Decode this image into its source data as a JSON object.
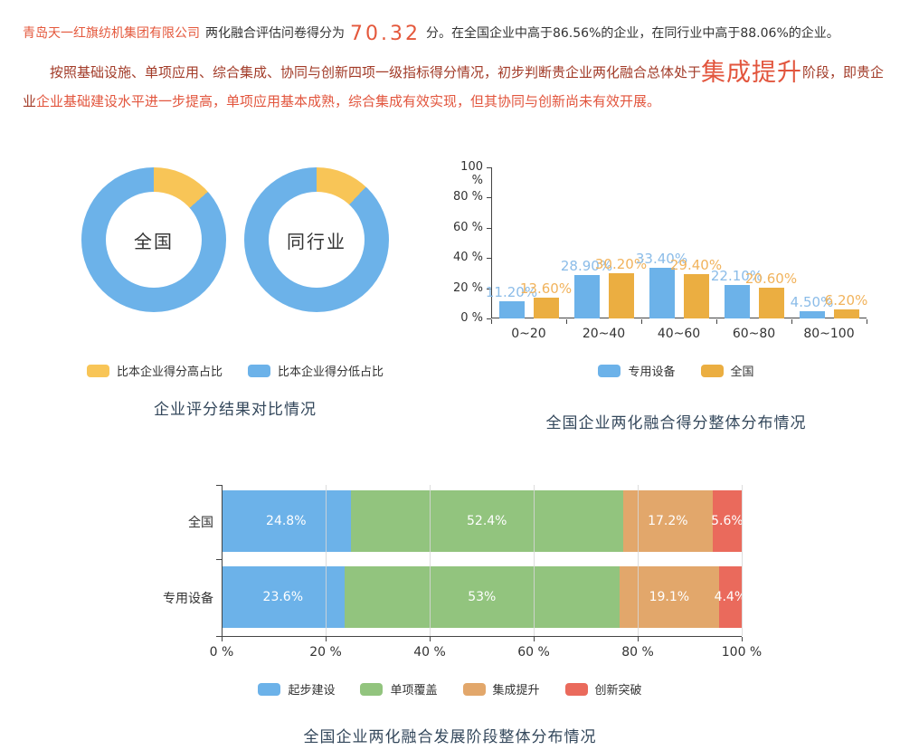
{
  "intro": {
    "company": "青岛天一红旗纺机集团有限公司",
    "prefix": "两化融合评估问卷得分为",
    "score": "70.32",
    "suffix": "分。在全国企业中高于86.56%的企业，在同行业中高于88.06%的企业。"
  },
  "assessment": {
    "part1": "按照基础设施、单项应用、综合集成、协同与创新四项一级指标得分情况，初步判断贵企业两化融合总体处于",
    "stage": "集成提升",
    "part2": "阶段，即贵企业",
    "part3": "企业基础建设水平进一步提高，单项应用基本成熟，综合集成有效实现，但其协同与创新尚未有效开展。"
  },
  "chart_data": [
    {
      "name": "score-comparison-donuts",
      "type": "pie",
      "title": "企业评分结果对比情况",
      "colors": {
        "higher": "#F8C557",
        "lower": "#6CB2E9"
      },
      "legend": [
        {
          "label": "比本企业得分高占比",
          "color": "#F8C557"
        },
        {
          "label": "比本企业得分低占比",
          "color": "#6CB2E9"
        }
      ],
      "donuts": [
        {
          "label": "全国",
          "higher_pct": 13.44,
          "lower_pct": 86.56
        },
        {
          "label": "同行业",
          "higher_pct": 11.94,
          "lower_pct": 88.06
        }
      ]
    },
    {
      "name": "score-distribution-bars",
      "type": "bar",
      "title": "全国企业两化融合得分整体分布情况",
      "categories": [
        "0~20",
        "20~40",
        "40~60",
        "60~80",
        "80~100"
      ],
      "ylabels": [
        "0 %",
        "20 %",
        "40 %",
        "60 %",
        "80 %",
        "100 %"
      ],
      "ylim": [
        0,
        100
      ],
      "legend_position": "bottom",
      "series": [
        {
          "name": "专用设备",
          "color": "#6CB2E9",
          "label_color": "#8BBCE8",
          "values": [
            11.2,
            28.9,
            33.4,
            22.1,
            4.5
          ],
          "labels": [
            "11.20%",
            "28.90%",
            "33.40%",
            "22.10%",
            "4.50%"
          ]
        },
        {
          "name": "全国",
          "color": "#EBAE41",
          "label_color": "#F1B35C",
          "values": [
            13.6,
            30.2,
            29.4,
            20.6,
            6.2
          ],
          "labels": [
            "13.60%",
            "30.20%",
            "29.40%",
            "20.60%",
            "6.20%"
          ]
        }
      ]
    },
    {
      "name": "stage-distribution-stacked",
      "type": "bar-stacked-horizontal",
      "title": "全国企业两化融合发展阶段整体分布情况",
      "categories": [
        "全国",
        "专用设备"
      ],
      "xlabels": [
        "0 %",
        "20 %",
        "40 %",
        "60 %",
        "80 %",
        "100 %"
      ],
      "xlim": [
        0,
        100
      ],
      "grid": true,
      "legend_position": "bottom",
      "series": [
        {
          "name": "起步建设",
          "color": "#6CB2E9",
          "values": [
            24.8,
            23.6
          ],
          "labels": [
            "24.8%",
            "23.6%"
          ]
        },
        {
          "name": "单项覆盖",
          "color": "#92C47E",
          "values": [
            52.4,
            53
          ],
          "labels": [
            "52.4%",
            "53%"
          ]
        },
        {
          "name": "集成提升",
          "color": "#E2A76B",
          "values": [
            17.2,
            19.1
          ],
          "labels": [
            "17.2%",
            "19.1%"
          ]
        },
        {
          "name": "创新突破",
          "color": "#EA6A5C",
          "values": [
            5.6,
            4.4
          ],
          "labels": [
            "5.6%",
            "4.4%"
          ]
        }
      ]
    }
  ]
}
